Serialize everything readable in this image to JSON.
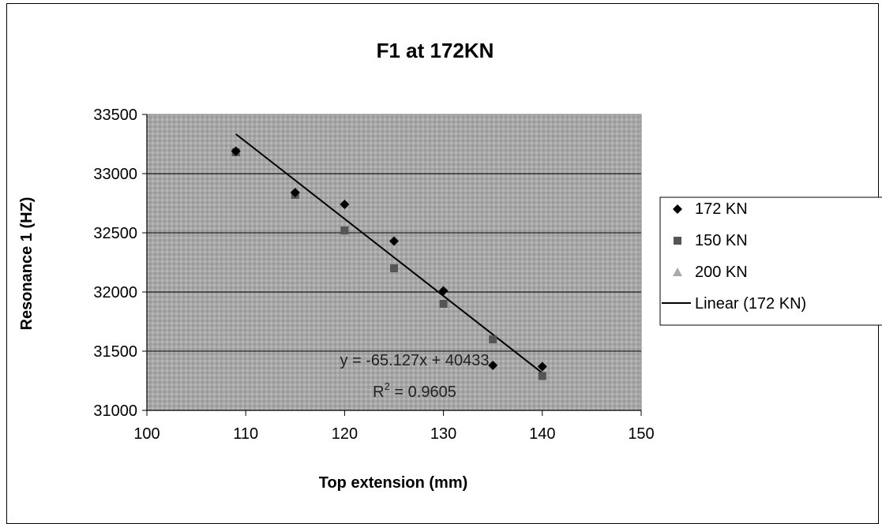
{
  "chart_data": {
    "type": "scatter",
    "title": "F1 at 172KN",
    "xlabel": "Top extension (mm)",
    "ylabel": "Resonance 1 (HZ)",
    "xlim": [
      100,
      150
    ],
    "ylim": [
      31000,
      33500
    ],
    "x_ticks": [
      "100",
      "110",
      "120",
      "130",
      "140",
      "150"
    ],
    "y_ticks": [
      "31000",
      "31500",
      "32000",
      "32500",
      "33000",
      "33500"
    ],
    "grid": "horizontal",
    "legend_position": "right",
    "series": [
      {
        "name": "172 KN",
        "marker": "diamond",
        "color": "#000000",
        "points": [
          [
            109,
            33190
          ],
          [
            115,
            32840
          ],
          [
            120,
            32740
          ],
          [
            125,
            32430
          ],
          [
            130,
            32010
          ],
          [
            135,
            31380
          ],
          [
            140,
            31370
          ]
        ]
      },
      {
        "name": "150 KN",
        "marker": "square",
        "color": "#555555",
        "points": [
          [
            109,
            33180
          ],
          [
            115,
            32820
          ],
          [
            120,
            32520
          ],
          [
            125,
            32200
          ],
          [
            130,
            31900
          ],
          [
            135,
            31600
          ],
          [
            140,
            31290
          ]
        ]
      },
      {
        "name": "200 KN",
        "marker": "triangle",
        "color": "#aaaaaa",
        "points": [
          [
            109,
            33230
          ],
          [
            130,
            32050
          ],
          [
            140,
            31400
          ]
        ]
      }
    ],
    "trendline": {
      "name": "Linear (172 KN)",
      "slope": -65.127,
      "intercept": 40433,
      "x_range": [
        109,
        140
      ],
      "equation_text": "y = -65.127x + 40433",
      "r2_label": "R",
      "r2_sup": "2",
      "r2_value": " = 0.9605"
    }
  }
}
